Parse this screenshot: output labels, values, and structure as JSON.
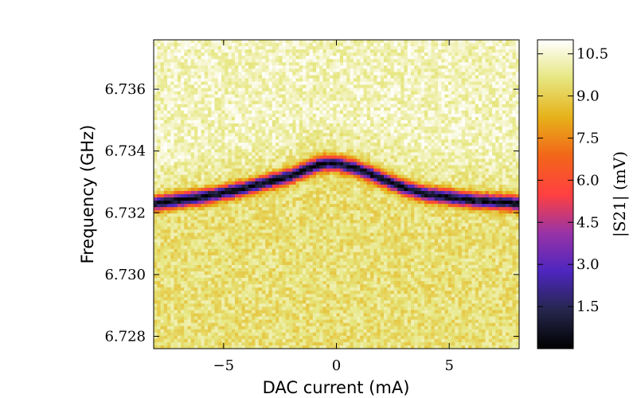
{
  "chart_data": {
    "type": "heatmap",
    "title": "",
    "xlabel": "DAC current (mA)",
    "ylabel": "Frequency (GHz)",
    "colorbar_label": "|S21| (mV)",
    "xlim": [
      -8.1,
      8.1
    ],
    "ylim": [
      6.7276,
      6.7376
    ],
    "x_ticks": [
      -5,
      0,
      5
    ],
    "x_tick_labels": [
      "−5",
      "0",
      "5"
    ],
    "y_ticks": [
      6.728,
      6.73,
      6.732,
      6.734,
      6.736
    ],
    "y_tick_labels": [
      "6.728",
      "6.730",
      "6.732",
      "6.734",
      "6.736"
    ],
    "colorbar_range": [
      0.0,
      11.0
    ],
    "colorbar_ticks": [
      1.5,
      3.0,
      4.5,
      6.0,
      7.5,
      9.0,
      10.5
    ],
    "colorbar_tick_labels": [
      "1.5",
      "3.0",
      "4.5",
      "6.0",
      "7.5",
      "9.0",
      "10.5"
    ],
    "colormap": "CMRmap",
    "resonance_ridge": {
      "dac_current_mA": [
        -8.0,
        -6.0,
        -4.0,
        -3.0,
        -2.0,
        -1.0,
        -0.5,
        0.0,
        0.5,
        1.0,
        2.0,
        3.0,
        4.0,
        6.0,
        8.0
      ],
      "frequency_GHz": [
        6.7323,
        6.7325,
        6.7328,
        6.733,
        6.7332,
        6.7335,
        6.7336,
        6.7336,
        6.7335,
        6.7334,
        6.7331,
        6.7328,
        6.7326,
        6.7324,
        6.7323
      ],
      "min_S21_mV": 0.3,
      "background_S21_mV": 9.5,
      "background_above_S21_mV": 10.3
    },
    "grid": false,
    "legend": "none"
  }
}
